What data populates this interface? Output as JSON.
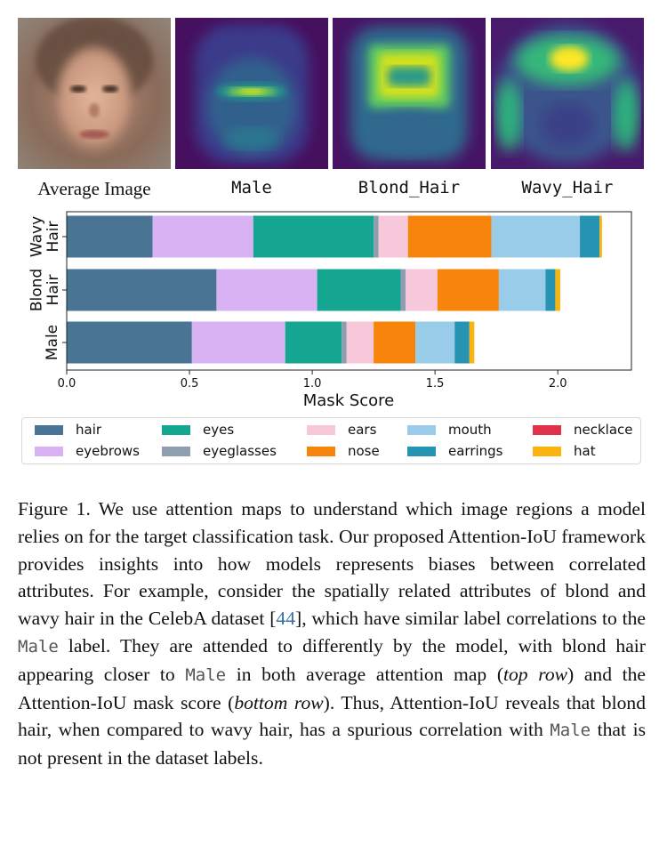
{
  "panels": [
    {
      "caption": "Average Image",
      "style": "serif"
    },
    {
      "caption": "Male",
      "style": "mono"
    },
    {
      "caption": "Blond_Hair",
      "style": "mono"
    },
    {
      "caption": "Wavy_Hair",
      "style": "mono"
    }
  ],
  "chart_data": {
    "type": "bar",
    "orientation": "horizontal",
    "stacked": true,
    "xlabel": "Mask Score",
    "xlim": [
      0,
      2.3
    ],
    "xticks": [
      "0.0",
      "0.5",
      "1.0",
      "1.5",
      "2.0"
    ],
    "categories": [
      "Wavy\nHair",
      "Blond\nHair",
      "Male"
    ],
    "series": [
      {
        "name": "hair",
        "color": "#4a7494",
        "values": [
          0.35,
          0.61,
          0.51
        ]
      },
      {
        "name": "eyebrows",
        "color": "#d8b2f2",
        "values": [
          0.41,
          0.41,
          0.38
        ]
      },
      {
        "name": "eyes",
        "color": "#14a690",
        "values": [
          0.49,
          0.34,
          0.23
        ]
      },
      {
        "name": "eyeglasses",
        "color": "#8f9db0",
        "values": [
          0.02,
          0.02,
          0.02
        ]
      },
      {
        "name": "ears",
        "color": "#f7c8da",
        "values": [
          0.12,
          0.13,
          0.11
        ]
      },
      {
        "name": "nose",
        "color": "#f7850c",
        "values": [
          0.34,
          0.25,
          0.17
        ]
      },
      {
        "name": "mouth",
        "color": "#98cce8",
        "values": [
          0.36,
          0.19,
          0.16
        ]
      },
      {
        "name": "earrings",
        "color": "#2894b4",
        "values": [
          0.08,
          0.04,
          0.06
        ]
      },
      {
        "name": "necklace",
        "color": "#e0314a",
        "values": [
          0.0,
          0.0,
          0.0
        ]
      },
      {
        "name": "hat",
        "color": "#fbb40e",
        "values": [
          0.01,
          0.02,
          0.02
        ]
      }
    ],
    "legend_position": "bottom",
    "grid": false
  },
  "legend": [
    "hair",
    "eyes",
    "ears",
    "mouth",
    "necklace",
    "eyebrows",
    "eyeglasses",
    "nose",
    "earrings",
    "hat"
  ],
  "caption": {
    "p1": "Figure 1. We use attention maps to understand which image regions a model relies on for the target classification task. Our proposed Attention-IoU framework provides insights into how models represents biases between correlated attributes. For example, consider the spatially related attributes of blond and wavy hair in the CelebA dataset [",
    "ref": "44",
    "p2": "], which have similar label correlations to the ",
    "male1": "Male",
    "p3": " label. They are attended to differently by the model, with blond hair appearing closer to ",
    "male2": "Male",
    "p4": " in both average attention map (",
    "top_row": "top row",
    "p5": ") and the Attention-IoU mask score (",
    "bottom_row": "bottom row",
    "p6": "). Thus, Attention-IoU reveals that blond hair, when compared to wavy hair, has a spurious correlation with ",
    "male3": "Male",
    "p7": " that is not present in the dataset labels."
  }
}
